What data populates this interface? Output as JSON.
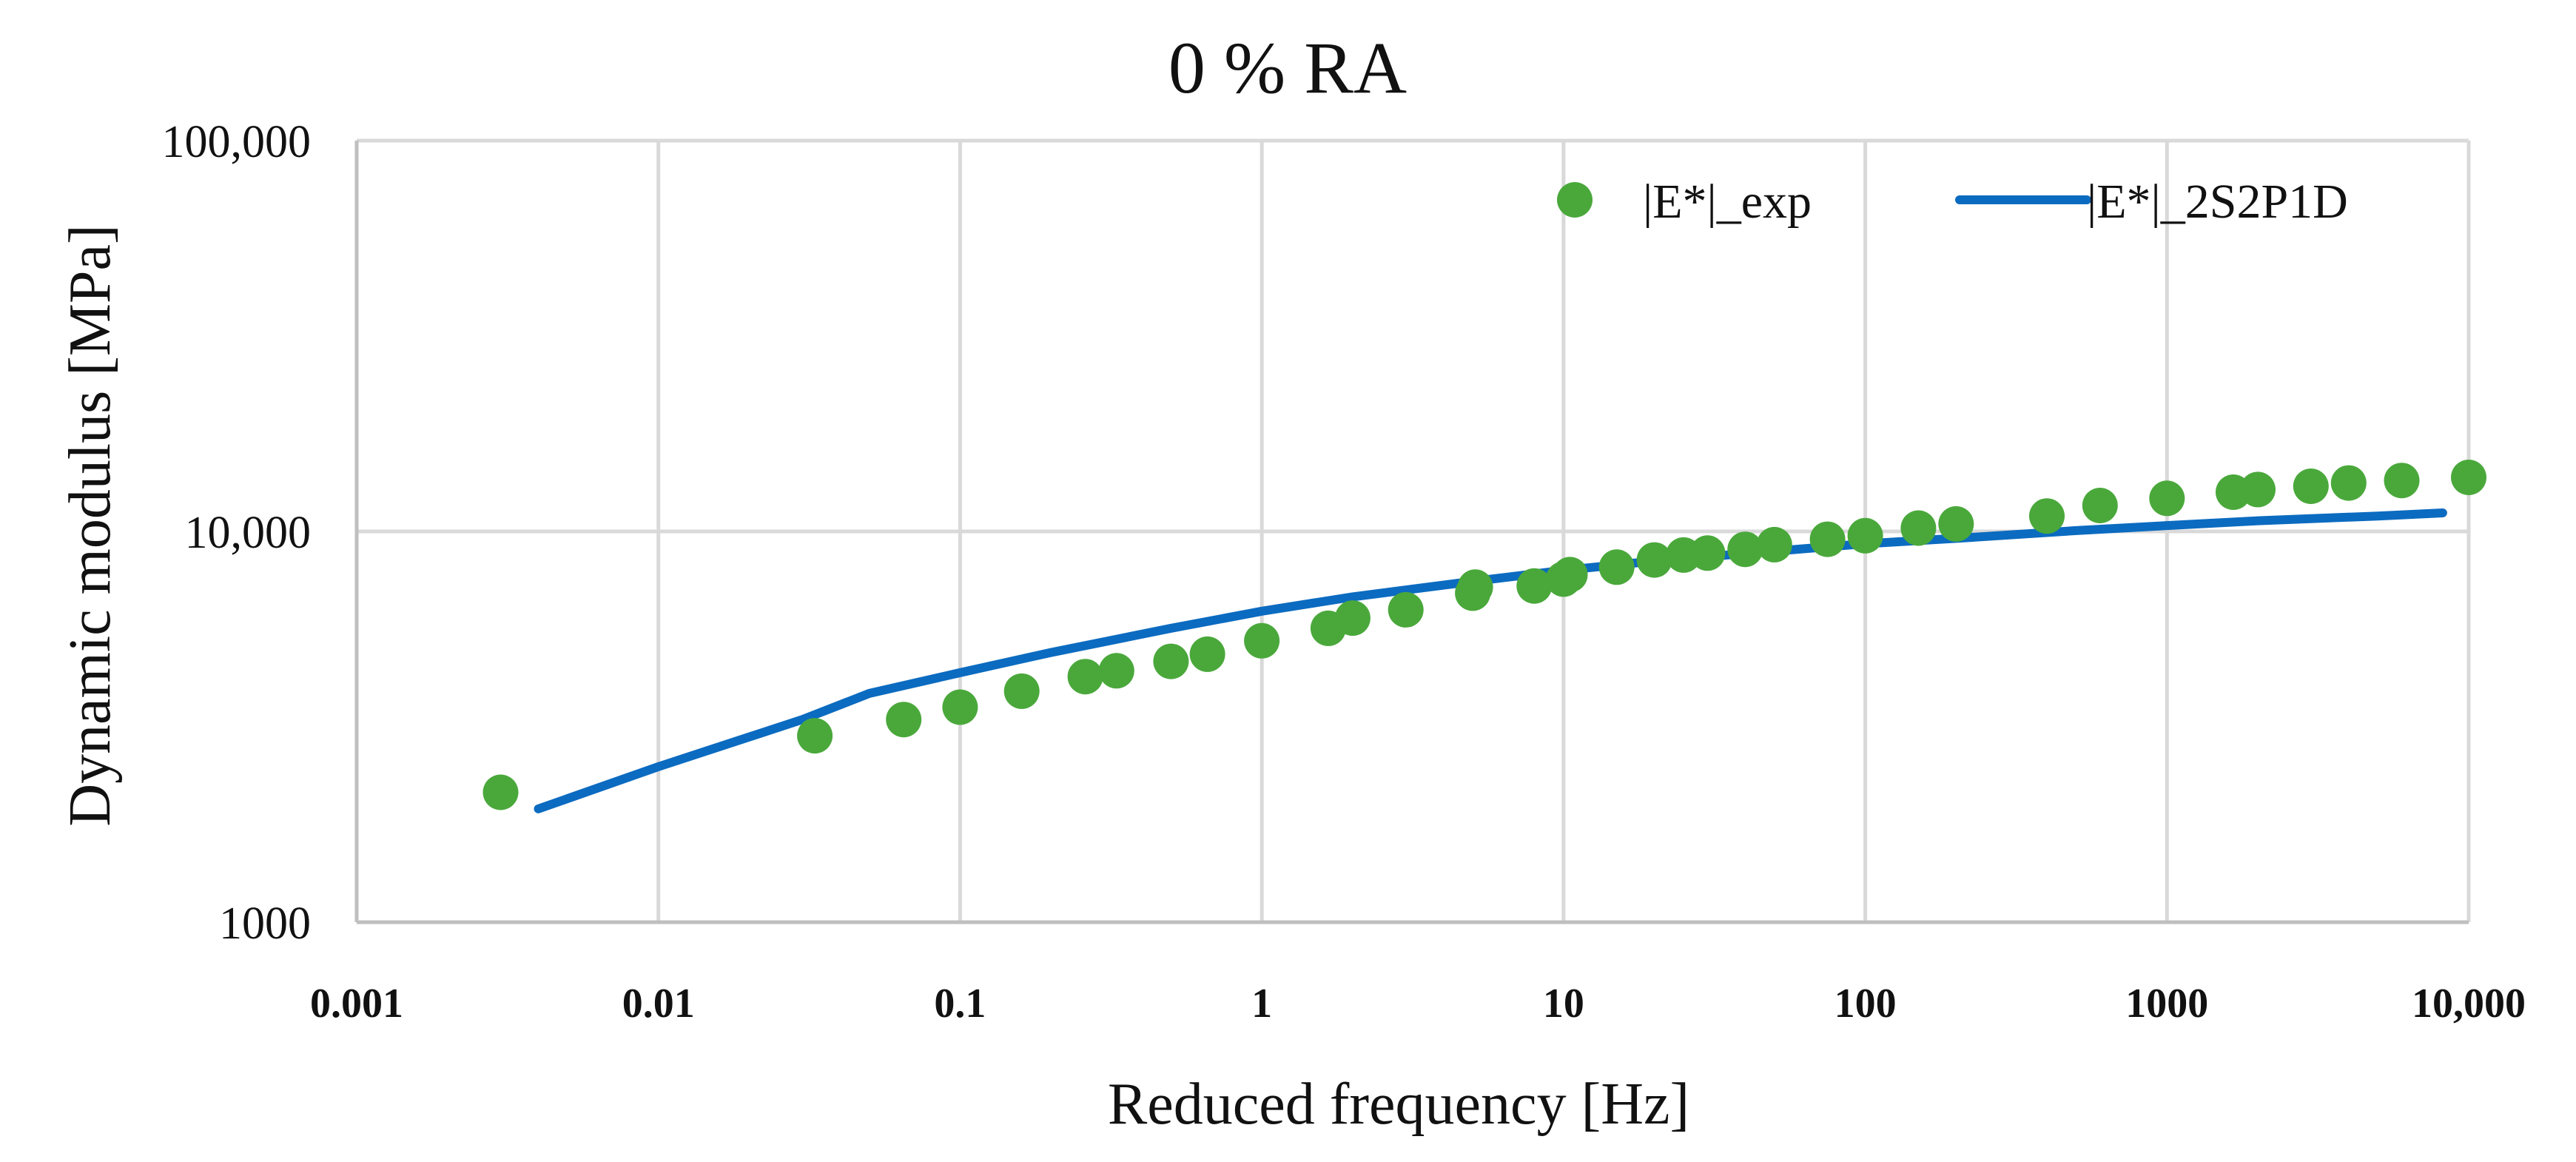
{
  "chart_data": {
    "type": "scatter",
    "title": "0 % RA",
    "xlabel": "Reduced frequency [Hz]",
    "ylabel": "Dynamic modulus [MPa]",
    "xscale": "log",
    "yscale": "log",
    "xlim": [
      0.001,
      10000
    ],
    "ylim": [
      1000,
      100000
    ],
    "grid": true,
    "legend_position": "top-right",
    "x_tick_values": [
      0.001,
      0.01,
      0.1,
      1,
      10,
      100,
      1000,
      10000
    ],
    "x_tick_labels": [
      "0.001",
      "0.01",
      "0.1",
      "1",
      "10",
      "100",
      "1000",
      "10,000"
    ],
    "y_tick_values": [
      1000,
      10000,
      100000
    ],
    "y_tick_labels": [
      "1000",
      "10,000",
      "100,000"
    ],
    "colors": {
      "exp": "#4aa83b",
      "model": "#0b6bc0",
      "grid": "#d9d9d9",
      "axis": "#bfbfbf"
    },
    "series": [
      {
        "name": "|E*|_exp",
        "kind": "scatter",
        "points": [
          {
            "x": 0.003,
            "y": 2150
          },
          {
            "x": 0.033,
            "y": 3000
          },
          {
            "x": 0.065,
            "y": 3300
          },
          {
            "x": 0.1,
            "y": 3550
          },
          {
            "x": 0.16,
            "y": 3900
          },
          {
            "x": 0.26,
            "y": 4250
          },
          {
            "x": 0.33,
            "y": 4400
          },
          {
            "x": 0.5,
            "y": 4650
          },
          {
            "x": 0.66,
            "y": 4850
          },
          {
            "x": 1.0,
            "y": 5250
          },
          {
            "x": 1.66,
            "y": 5650
          },
          {
            "x": 2.0,
            "y": 6000
          },
          {
            "x": 3.0,
            "y": 6300
          },
          {
            "x": 5.0,
            "y": 6950
          },
          {
            "x": 5.1,
            "y": 7200
          },
          {
            "x": 8.0,
            "y": 7250
          },
          {
            "x": 10.0,
            "y": 7550
          },
          {
            "x": 10.5,
            "y": 7750
          },
          {
            "x": 15.0,
            "y": 8100
          },
          {
            "x": 20.0,
            "y": 8450
          },
          {
            "x": 25.0,
            "y": 8700
          },
          {
            "x": 30.0,
            "y": 8800
          },
          {
            "x": 40.0,
            "y": 9000
          },
          {
            "x": 50.0,
            "y": 9250
          },
          {
            "x": 75.0,
            "y": 9550
          },
          {
            "x": 100.0,
            "y": 9750
          },
          {
            "x": 150.0,
            "y": 10200
          },
          {
            "x": 200.0,
            "y": 10450
          },
          {
            "x": 400.0,
            "y": 10950
          },
          {
            "x": 600.0,
            "y": 11650
          },
          {
            "x": 1000.0,
            "y": 12150
          },
          {
            "x": 1660.0,
            "y": 12600
          },
          {
            "x": 2000.0,
            "y": 12800
          },
          {
            "x": 3000.0,
            "y": 13050
          },
          {
            "x": 4000.0,
            "y": 13300
          },
          {
            "x": 6000.0,
            "y": 13500
          },
          {
            "x": 10000.0,
            "y": 13750
          }
        ]
      },
      {
        "name": "|E*|_2S2P1D",
        "kind": "line",
        "points": [
          {
            "x": 0.004,
            "y": 1950
          },
          {
            "x": 0.01,
            "y": 2500
          },
          {
            "x": 0.03,
            "y": 3300
          },
          {
            "x": 0.05,
            "y": 3850
          },
          {
            "x": 0.1,
            "y": 4350
          },
          {
            "x": 0.2,
            "y": 4900
          },
          {
            "x": 0.5,
            "y": 5650
          },
          {
            "x": 1,
            "y": 6250
          },
          {
            "x": 2,
            "y": 6800
          },
          {
            "x": 5,
            "y": 7450
          },
          {
            "x": 10,
            "y": 7950
          },
          {
            "x": 20,
            "y": 8400
          },
          {
            "x": 50,
            "y": 8900
          },
          {
            "x": 100,
            "y": 9300
          },
          {
            "x": 200,
            "y": 9600
          },
          {
            "x": 500,
            "y": 10050
          },
          {
            "x": 1000,
            "y": 10350
          },
          {
            "x": 2000,
            "y": 10650
          },
          {
            "x": 5000,
            "y": 10950
          },
          {
            "x": 8200,
            "y": 11150
          }
        ]
      }
    ]
  }
}
